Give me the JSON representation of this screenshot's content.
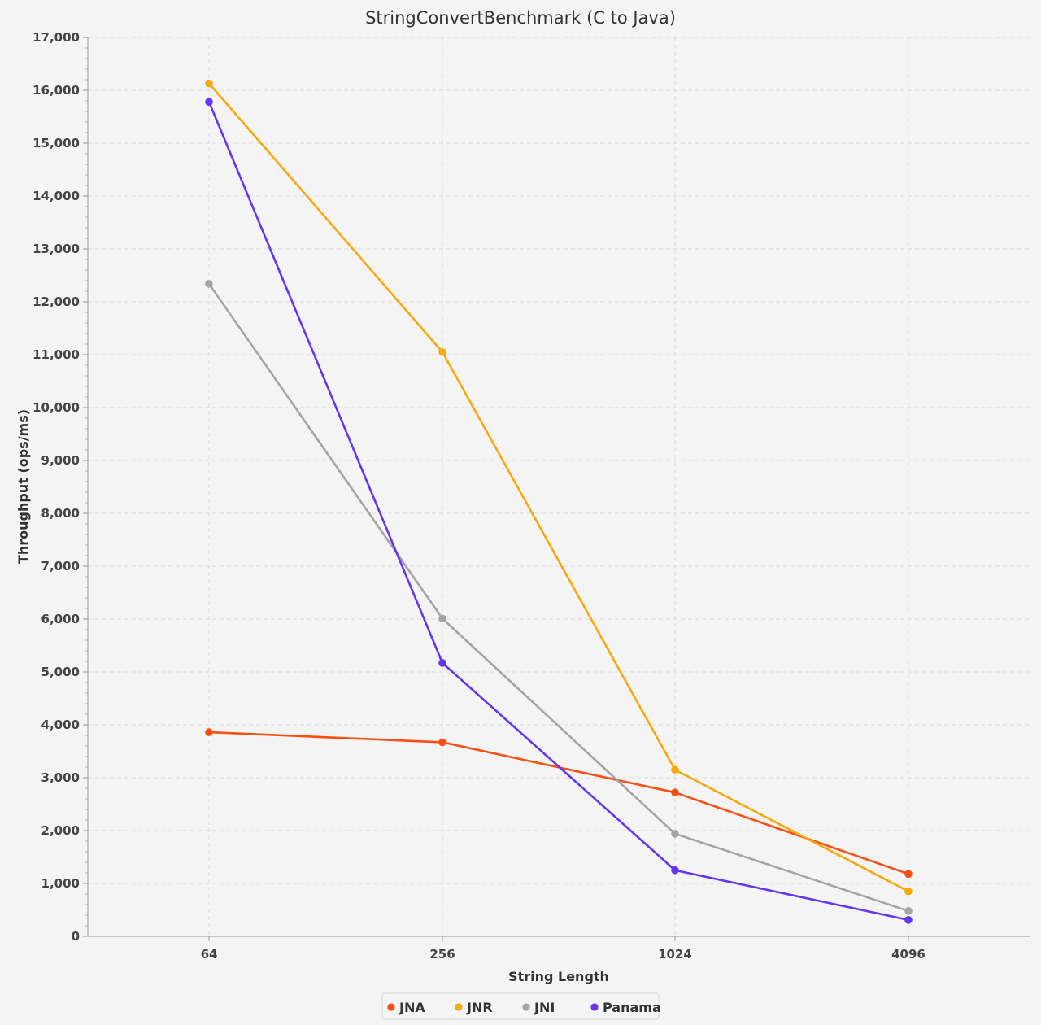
{
  "chart_data": {
    "type": "line",
    "title": "StringConvertBenchmark (C to Java)",
    "xlabel": "String Length",
    "ylabel": "Throughput (ops/ms)",
    "categories": [
      "64",
      "256",
      "1024",
      "4096"
    ],
    "ylim": [
      0,
      17000
    ],
    "yticks": [
      "0",
      "1,000",
      "2,000",
      "3,000",
      "4,000",
      "5,000",
      "6,000",
      "7,000",
      "8,000",
      "9,000",
      "10,000",
      "11,000",
      "12,000",
      "13,000",
      "14,000",
      "15,000",
      "16,000",
      "17,000"
    ],
    "grid": true,
    "legend_position": "bottom",
    "series": [
      {
        "name": "JNA",
        "color": "#f94f12",
        "values": [
          3860,
          3670,
          2720,
          1180
        ]
      },
      {
        "name": "JNR",
        "color": "#f7a80c",
        "values": [
          16130,
          11050,
          3150,
          850
        ]
      },
      {
        "name": "JNI",
        "color": "#a5a5a5",
        "values": [
          12340,
          6010,
          1940,
          480
        ]
      },
      {
        "name": "Panama",
        "color": "#6237ef",
        "values": [
          15780,
          5170,
          1250,
          310
        ]
      }
    ]
  }
}
